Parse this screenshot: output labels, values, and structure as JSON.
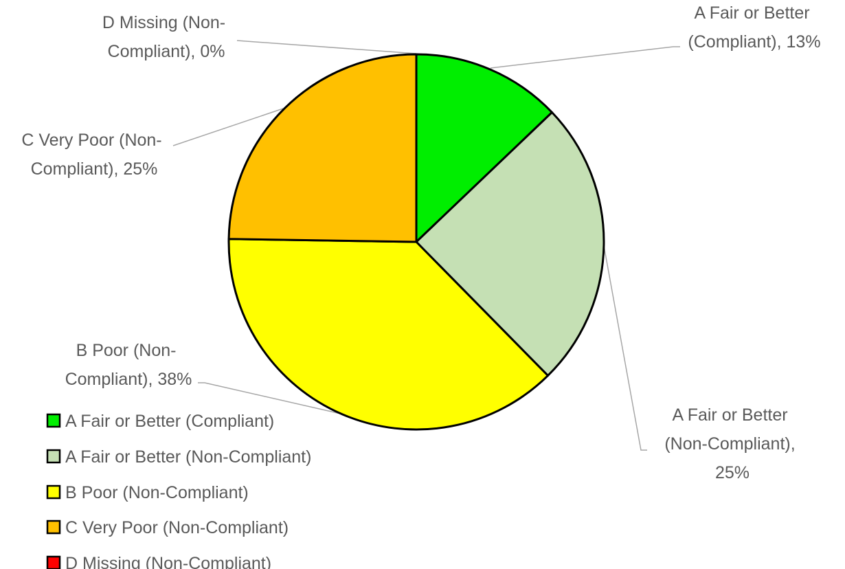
{
  "chart_data": {
    "type": "pie",
    "title": "",
    "legend_position": "bottom-left",
    "slices": [
      {
        "label": "A Fair or Better (Compliant)",
        "value": 13,
        "data_label_line1": "A Fair or Better",
        "data_label_line2": "(Compliant), 13%",
        "data_label_line3": "",
        "color": "#00ee00"
      },
      {
        "label": "A Fair or Better (Non-Compliant)",
        "value": 25,
        "data_label_line1": "A Fair or Better",
        "data_label_line2": "(Non-Compliant),",
        "data_label_line3": "25%",
        "color": "#c5e0b4"
      },
      {
        "label": "B Poor (Non-Compliant)",
        "value": 38,
        "data_label_line1": "B Poor (Non-",
        "data_label_line2": "Compliant), 38%",
        "data_label_line3": "",
        "color": "#ffff00"
      },
      {
        "label": "C Very Poor (Non-Compliant)",
        "value": 25,
        "data_label_line1": "C Very Poor (Non-",
        "data_label_line2": "Compliant), 25%",
        "data_label_line3": "",
        "color": "#ffc000"
      },
      {
        "label": "D Missing (Non-Compliant)",
        "value": 0,
        "data_label_line1": "D Missing (Non-",
        "data_label_line2": "Compliant), 0%",
        "data_label_line3": "",
        "color": "#ff0000"
      }
    ]
  }
}
